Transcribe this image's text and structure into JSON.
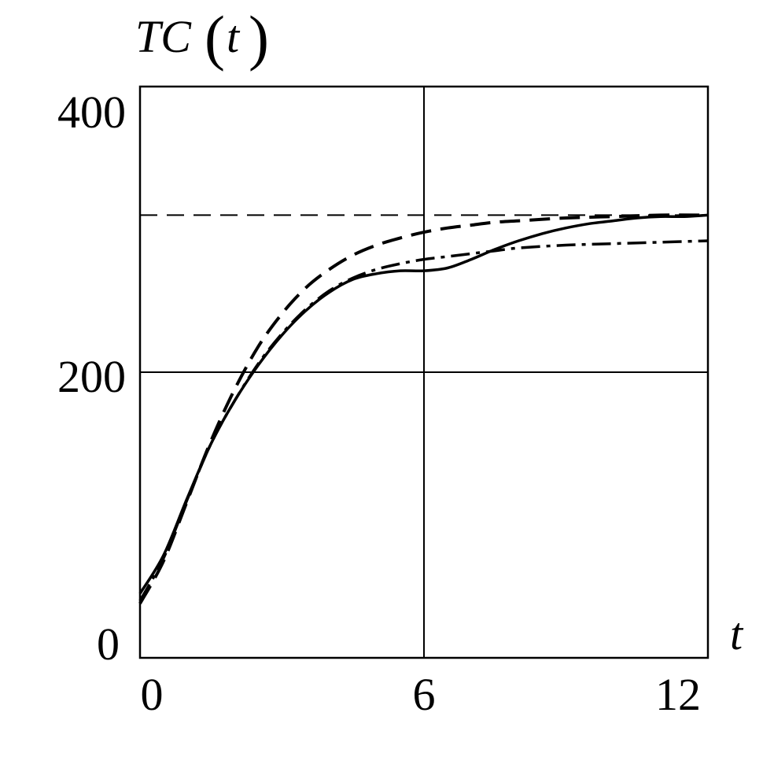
{
  "chart_data": {
    "type": "line",
    "title": "",
    "ylabel": {
      "func": "TC",
      "open": "(",
      "arg": "t",
      "close": ")"
    },
    "xlabel": "t",
    "xlim": [
      0,
      12
    ],
    "ylim": [
      0,
      400
    ],
    "xticks": [
      "0",
      "6",
      "12"
    ],
    "yticks": [
      "0",
      "200",
      "400"
    ],
    "grid": {
      "x": [
        6
      ],
      "y": [
        200
      ]
    },
    "reference_line": {
      "y": 310,
      "style": "dashed-thin"
    },
    "series": [
      {
        "style": "solid",
        "points": [
          [
            0,
            45
          ],
          [
            0.5,
            72
          ],
          [
            1,
            112
          ],
          [
            1.5,
            150
          ],
          [
            2,
            180
          ],
          [
            2.5,
            205
          ],
          [
            3,
            226
          ],
          [
            3.5,
            243
          ],
          [
            4,
            256
          ],
          [
            4.5,
            265
          ],
          [
            5,
            269
          ],
          [
            5.5,
            271
          ],
          [
            6,
            271
          ],
          [
            6.5,
            273
          ],
          [
            7,
            279
          ],
          [
            7.5,
            286
          ],
          [
            8,
            292
          ],
          [
            8.5,
            297
          ],
          [
            9,
            301
          ],
          [
            9.5,
            304
          ],
          [
            10,
            306
          ],
          [
            10.5,
            308
          ],
          [
            11,
            309
          ],
          [
            11.5,
            309
          ],
          [
            12,
            310
          ]
        ]
      },
      {
        "style": "dashed",
        "points": [
          [
            0,
            38
          ],
          [
            0.5,
            68
          ],
          [
            1,
            110
          ],
          [
            1.5,
            152
          ],
          [
            2,
            188
          ],
          [
            2.5,
            218
          ],
          [
            3,
            241
          ],
          [
            3.5,
            259
          ],
          [
            4,
            272
          ],
          [
            4.5,
            282
          ],
          [
            5,
            289
          ],
          [
            5.5,
            294
          ],
          [
            6,
            298
          ],
          [
            6.5,
            301
          ],
          [
            7,
            303
          ],
          [
            7.5,
            305
          ],
          [
            8,
            306
          ],
          [
            9,
            308
          ],
          [
            10,
            309
          ],
          [
            11,
            310
          ],
          [
            12,
            310
          ]
        ]
      },
      {
        "style": "dashdot",
        "points": [
          [
            0,
            40
          ],
          [
            0.5,
            70
          ],
          [
            1,
            111
          ],
          [
            1.5,
            150
          ],
          [
            2,
            180
          ],
          [
            2.5,
            206
          ],
          [
            3,
            227
          ],
          [
            3.5,
            244
          ],
          [
            4,
            257
          ],
          [
            4.5,
            266
          ],
          [
            5,
            272
          ],
          [
            5.5,
            276
          ],
          [
            6,
            279
          ],
          [
            6.5,
            281
          ],
          [
            7,
            283
          ],
          [
            7.5,
            285
          ],
          [
            8,
            287
          ],
          [
            9,
            289
          ],
          [
            10,
            290
          ],
          [
            11,
            291
          ],
          [
            12,
            292
          ]
        ]
      }
    ]
  }
}
